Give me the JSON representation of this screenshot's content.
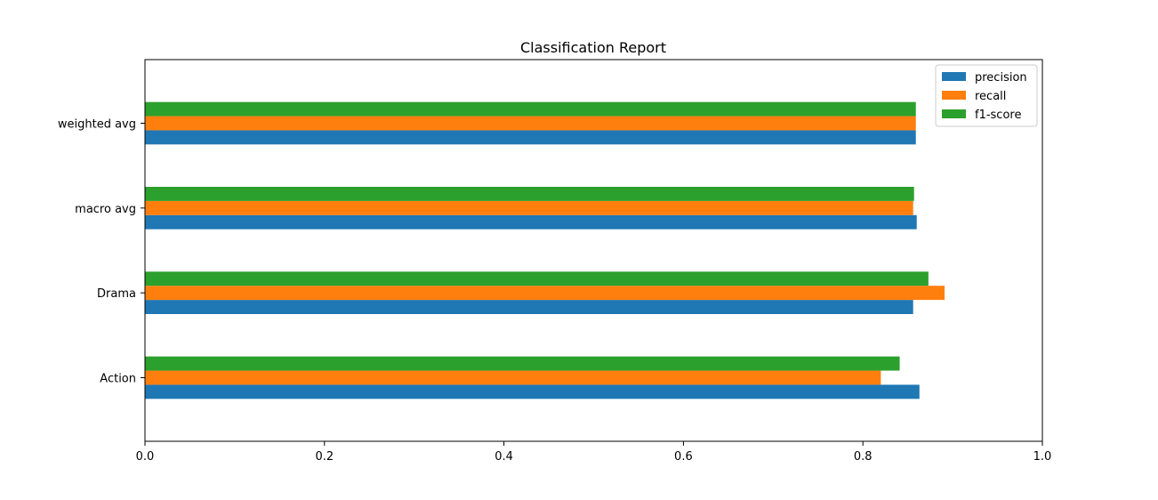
{
  "chart_data": {
    "type": "bar",
    "orientation": "horizontal",
    "title": "Classification Report",
    "xlabel": "",
    "ylabel": "",
    "categories": [
      "Action",
      "Drama",
      "macro avg",
      "weighted avg"
    ],
    "series": [
      {
        "name": "precision",
        "color": "#1f77b4",
        "values": [
          0.863,
          0.856,
          0.86,
          0.859
        ]
      },
      {
        "name": "recall",
        "color": "#ff7f0e",
        "values": [
          0.82,
          0.891,
          0.856,
          0.859
        ]
      },
      {
        "name": "f1-score",
        "color": "#2ca02c",
        "values": [
          0.841,
          0.873,
          0.857,
          0.859
        ]
      }
    ],
    "xlim": [
      0.0,
      1.0
    ],
    "xticks": [
      "0.0",
      "0.2",
      "0.4",
      "0.6",
      "0.8",
      "1.0"
    ],
    "grid": false,
    "legend_position": "top-right"
  }
}
